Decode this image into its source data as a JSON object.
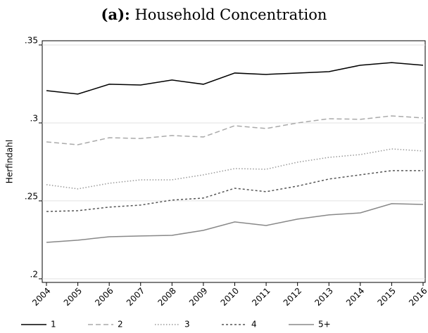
{
  "chart_data": {
    "type": "line",
    "title_prefix": "(a):",
    "title": "Household Concentration",
    "y_label": "Herfindahl",
    "x": [
      2004,
      2005,
      2006,
      2007,
      2008,
      2009,
      2010,
      2011,
      2012,
      2013,
      2014,
      2015,
      2016
    ],
    "xlim": [
      2004,
      2016
    ],
    "xticks": [
      2004,
      2005,
      2006,
      2007,
      2008,
      2009,
      2010,
      2011,
      2012,
      2013,
      2014,
      2015,
      2016
    ],
    "ylim": [
      0.1977,
      0.3527
    ],
    "yticks": [
      {
        "value": 0.2,
        "label": ".2"
      },
      {
        "value": 0.25,
        "label": ".25"
      },
      {
        "value": 0.3,
        "label": ".3"
      },
      {
        "value": 0.35,
        "label": ".35"
      }
    ],
    "grid": true,
    "legend": "bottom",
    "series": [
      {
        "name": "1",
        "color": "#000000",
        "dash": "solid",
        "values": [
          0.3207,
          0.3185,
          0.3248,
          0.3243,
          0.3275,
          0.3248,
          0.332,
          0.3311,
          0.332,
          0.3329,
          0.337,
          0.3387,
          0.337
        ]
      },
      {
        "name": "2",
        "color": "#aaaaaa",
        "dash": "dashed",
        "values": [
          0.2878,
          0.286,
          0.2905,
          0.29,
          0.2919,
          0.291,
          0.2982,
          0.2964,
          0.3,
          0.3027,
          0.3023,
          0.3045,
          0.3032
        ]
      },
      {
        "name": "3",
        "color": "#999999",
        "dash": "dotted",
        "values": [
          0.2604,
          0.2577,
          0.2613,
          0.2635,
          0.2635,
          0.2667,
          0.2707,
          0.2703,
          0.2748,
          0.2779,
          0.2797,
          0.2833,
          0.282
        ]
      },
      {
        "name": "4",
        "color": "#555555",
        "dash": "shortdash",
        "values": [
          0.2432,
          0.2437,
          0.246,
          0.2473,
          0.2505,
          0.2518,
          0.2581,
          0.2559,
          0.2595,
          0.264,
          0.2667,
          0.2694,
          0.2694
        ]
      },
      {
        "name": "5+",
        "color": "#888888",
        "dash": "solid",
        "values": [
          0.2234,
          0.2248,
          0.227,
          0.2275,
          0.2279,
          0.2311,
          0.2365,
          0.2342,
          0.2383,
          0.241,
          0.2423,
          0.2482,
          0.2477
        ]
      }
    ]
  }
}
